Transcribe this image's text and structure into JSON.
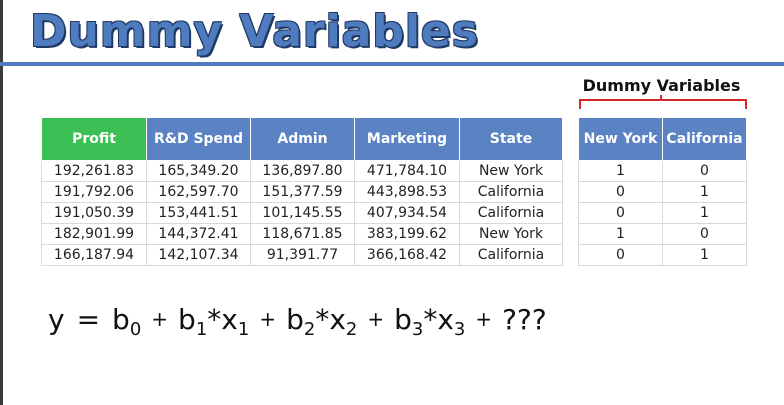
{
  "title": "Dummy Variables",
  "dummy_label": "Dummy Variables",
  "table": {
    "headers": [
      "Profit",
      "R&D Spend",
      "Admin",
      "Marketing",
      "State"
    ],
    "rows": [
      [
        "192,261.83",
        "165,349.20",
        "136,897.80",
        "471,784.10",
        "New York"
      ],
      [
        "191,792.06",
        "162,597.70",
        "151,377.59",
        "443,898.53",
        "California"
      ],
      [
        "191,050.39",
        "153,441.51",
        "101,145.55",
        "407,934.54",
        "California"
      ],
      [
        "182,901.99",
        "144,372.41",
        "118,671.85",
        "383,199.62",
        "New York"
      ],
      [
        "166,187.94",
        "142,107.34",
        "91,391.77",
        "366,168.42",
        "California"
      ]
    ]
  },
  "dummy_table": {
    "headers": [
      "New York",
      "California"
    ],
    "rows": [
      [
        "1",
        "0"
      ],
      [
        "0",
        "1"
      ],
      [
        "0",
        "1"
      ],
      [
        "1",
        "0"
      ],
      [
        "0",
        "1"
      ]
    ]
  },
  "equation": {
    "y": "y",
    "eq": "=",
    "b0": "b",
    "b0_sub": "0",
    "plus": "+",
    "b1": "b",
    "b1_sub": "1",
    "x1": "*x",
    "x1_sub": "1",
    "b2": "b",
    "b2_sub": "2",
    "x2": "*x",
    "x2_sub": "2",
    "b3": "b",
    "b3_sub": "3",
    "x3": "*x",
    "x3_sub": "3",
    "unknown": "???"
  },
  "colors": {
    "header_blue": "#5b82c3",
    "header_green": "#3cc055",
    "title_blue": "#4f7bbf",
    "brace_red": "#d62828"
  }
}
